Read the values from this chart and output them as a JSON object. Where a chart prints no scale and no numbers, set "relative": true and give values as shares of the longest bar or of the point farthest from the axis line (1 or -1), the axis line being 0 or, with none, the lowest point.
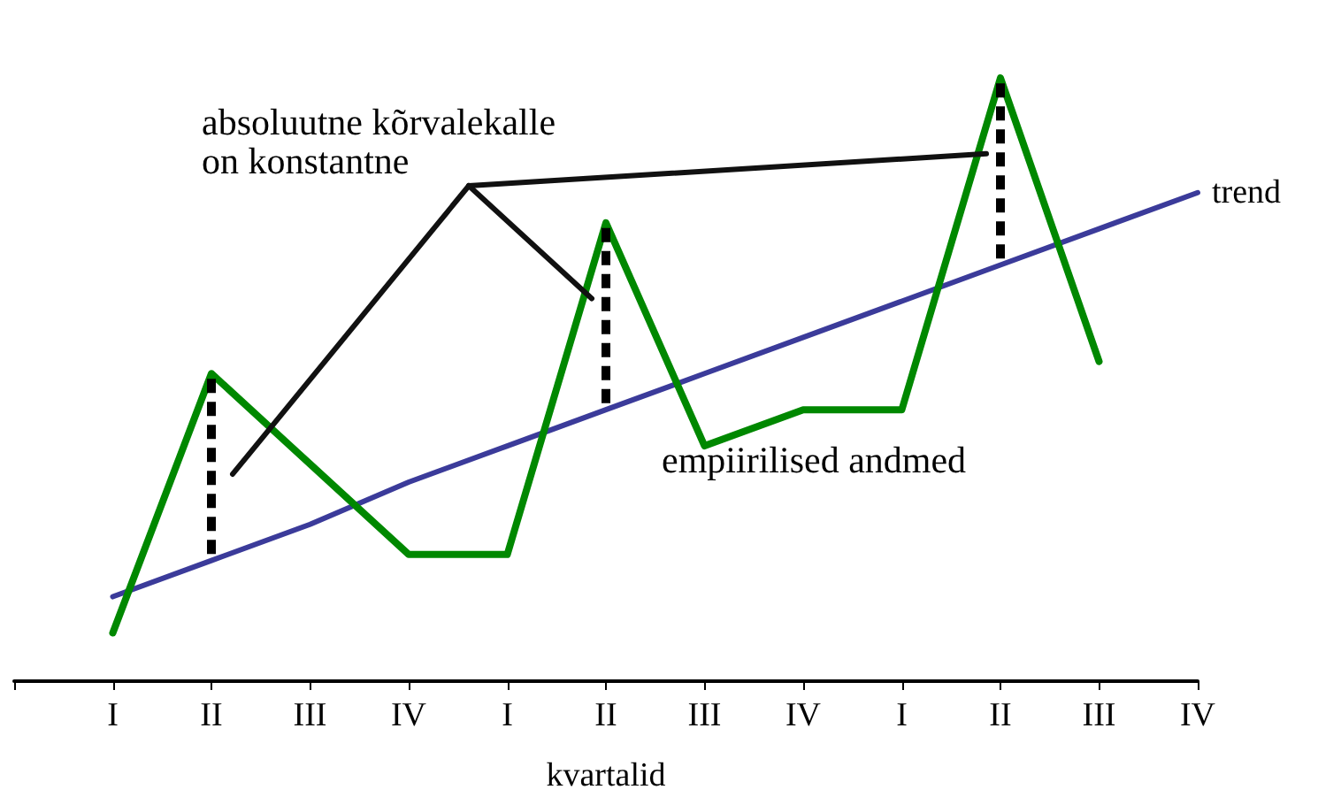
{
  "chart_data": {
    "type": "line",
    "relative": true,
    "xlabel": "kvartalid",
    "categories": [
      null,
      "I",
      "II",
      "III",
      "IV",
      "I",
      "II",
      "III",
      "IV",
      "I",
      "II",
      "III",
      "IV"
    ],
    "series": [
      {
        "name": "empiirilised andmed",
        "color": "#008800",
        "values": [
          null,
          0.08,
          0.51,
          0.36,
          0.21,
          0.21,
          0.76,
          0.39,
          0.45,
          0.45,
          1,
          0.53,
          null
        ]
      },
      {
        "name": "trend",
        "color": "#3b3b9a",
        "values": [
          null,
          0.14,
          0.2,
          0.26,
          0.33,
          0.39,
          0.45,
          0.51,
          0.57,
          0.63,
          0.69,
          0.75,
          0.81
        ]
      }
    ],
    "annotations": [
      "absoluutne kõrvalekalle\non konstantne"
    ],
    "legend": false,
    "grid": false,
    "marker": "none",
    "line_style": "solid"
  }
}
